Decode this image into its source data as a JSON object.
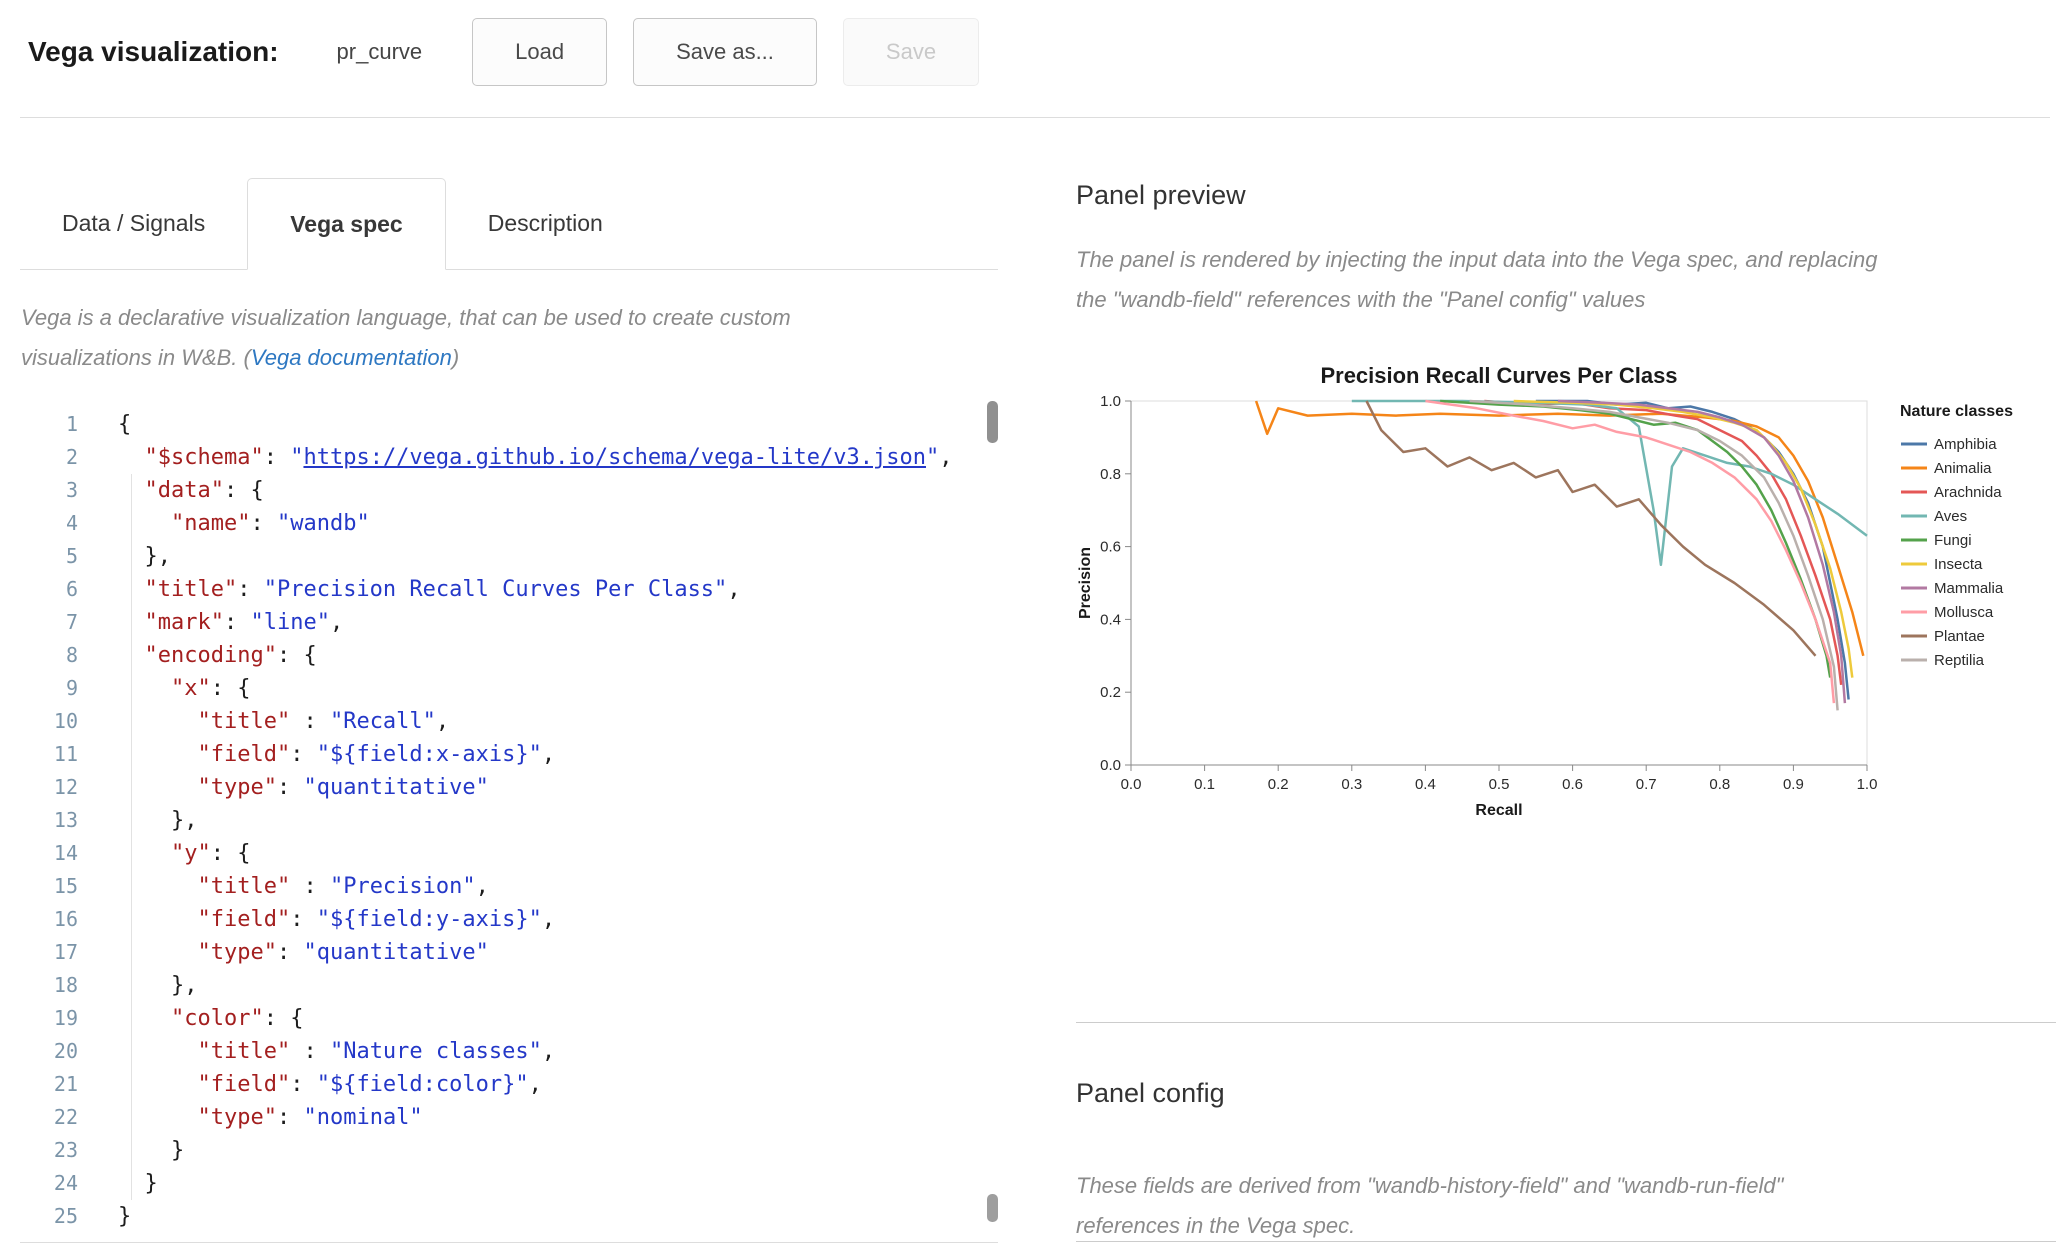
{
  "header": {
    "title": "Vega visualization:",
    "panel_name": "pr_curve",
    "buttons": {
      "load": "Load",
      "save_as": "Save as...",
      "save": "Save"
    }
  },
  "tabs": [
    {
      "label": "Data / Signals",
      "active": false
    },
    {
      "label": "Vega spec",
      "active": true
    },
    {
      "label": "Description",
      "active": false
    }
  ],
  "intro": {
    "line1": "Vega is a declarative visualization language, that can be used to create custom",
    "line2_prefix": "visualizations in W&B. (",
    "link_label": "Vega documentation",
    "suffix": ")"
  },
  "colors": {
    "link": "#2e78c2",
    "code_key": "#a31f1f",
    "code_string": "#2438c8",
    "code_plain": "#1c1c1c",
    "line_number": "#7b94a8"
  },
  "editor": {
    "lines": [
      [
        [
          "p",
          "{"
        ]
      ],
      [
        [
          "p",
          "  "
        ],
        [
          "k",
          "\"$schema\""
        ],
        [
          "p",
          ": "
        ],
        [
          "s",
          "\""
        ],
        [
          "l",
          "https://vega.github.io/schema/vega-lite/v3.json"
        ],
        [
          "s",
          "\""
        ],
        [
          "p",
          ","
        ]
      ],
      [
        [
          "p",
          "  "
        ],
        [
          "k",
          "\"data\""
        ],
        [
          "p",
          ": {"
        ]
      ],
      [
        [
          "p",
          "    "
        ],
        [
          "k",
          "\"name\""
        ],
        [
          "p",
          ": "
        ],
        [
          "s",
          "\"wandb\""
        ]
      ],
      [
        [
          "p",
          "  },"
        ]
      ],
      [
        [
          "p",
          "  "
        ],
        [
          "k",
          "\"title\""
        ],
        [
          "p",
          ": "
        ],
        [
          "s",
          "\"Precision Recall Curves Per Class\""
        ],
        [
          "p",
          ","
        ]
      ],
      [
        [
          "p",
          "  "
        ],
        [
          "k",
          "\"mark\""
        ],
        [
          "p",
          ": "
        ],
        [
          "s",
          "\"line\""
        ],
        [
          "p",
          ","
        ]
      ],
      [
        [
          "p",
          "  "
        ],
        [
          "k",
          "\"encoding\""
        ],
        [
          "p",
          ": {"
        ]
      ],
      [
        [
          "p",
          "    "
        ],
        [
          "k",
          "\"x\""
        ],
        [
          "p",
          ": {"
        ]
      ],
      [
        [
          "p",
          "      "
        ],
        [
          "k",
          "\"title\""
        ],
        [
          "p",
          " : "
        ],
        [
          "s",
          "\"Recall\""
        ],
        [
          "p",
          ","
        ]
      ],
      [
        [
          "p",
          "      "
        ],
        [
          "k",
          "\"field\""
        ],
        [
          "p",
          ": "
        ],
        [
          "s",
          "\"${field:x-axis}\""
        ],
        [
          "p",
          ","
        ]
      ],
      [
        [
          "p",
          "      "
        ],
        [
          "k",
          "\"type\""
        ],
        [
          "p",
          ": "
        ],
        [
          "s",
          "\"quantitative\""
        ]
      ],
      [
        [
          "p",
          "    },"
        ]
      ],
      [
        [
          "p",
          "    "
        ],
        [
          "k",
          "\"y\""
        ],
        [
          "p",
          ": {"
        ]
      ],
      [
        [
          "p",
          "      "
        ],
        [
          "k",
          "\"title\""
        ],
        [
          "p",
          " : "
        ],
        [
          "s",
          "\"Precision\""
        ],
        [
          "p",
          ","
        ]
      ],
      [
        [
          "p",
          "      "
        ],
        [
          "k",
          "\"field\""
        ],
        [
          "p",
          ": "
        ],
        [
          "s",
          "\"${field:y-axis}\""
        ],
        [
          "p",
          ","
        ]
      ],
      [
        [
          "p",
          "      "
        ],
        [
          "k",
          "\"type\""
        ],
        [
          "p",
          ": "
        ],
        [
          "s",
          "\"quantitative\""
        ]
      ],
      [
        [
          "p",
          "    },"
        ]
      ],
      [
        [
          "p",
          "    "
        ],
        [
          "k",
          "\"color\""
        ],
        [
          "p",
          ": {"
        ]
      ],
      [
        [
          "p",
          "      "
        ],
        [
          "k",
          "\"title\""
        ],
        [
          "p",
          " : "
        ],
        [
          "s",
          "\"Nature classes\""
        ],
        [
          "p",
          ","
        ]
      ],
      [
        [
          "p",
          "      "
        ],
        [
          "k",
          "\"field\""
        ],
        [
          "p",
          ": "
        ],
        [
          "s",
          "\"${field:color}\""
        ],
        [
          "p",
          ","
        ]
      ],
      [
        [
          "p",
          "      "
        ],
        [
          "k",
          "\"type\""
        ],
        [
          "p",
          ": "
        ],
        [
          "s",
          "\"nominal\""
        ]
      ],
      [
        [
          "p",
          "    }"
        ]
      ],
      [
        [
          "p",
          "  }"
        ]
      ],
      [
        [
          "p",
          "}"
        ]
      ]
    ]
  },
  "preview": {
    "heading": "Panel preview",
    "lines": [
      "The panel is rendered by injecting the input data into the Vega spec, and replacing",
      "the \"wandb-field\" references with the \"Panel config\" values"
    ]
  },
  "config": {
    "heading": "Panel config",
    "lines": [
      "These fields are derived from \"wandb-history-field\" and \"wandb-run-field\"",
      "references in the Vega spec."
    ]
  },
  "chart_data": {
    "type": "line",
    "title": "Precision Recall Curves Per Class",
    "xlabel": "Recall",
    "ylabel": "Precision",
    "xlim": [
      0,
      1
    ],
    "ylim": [
      0,
      1
    ],
    "x_ticks": [
      0,
      0.1,
      0.2,
      0.3,
      0.4,
      0.5,
      0.6,
      0.7,
      0.8,
      0.9,
      1.0
    ],
    "y_ticks": [
      0,
      0.2,
      0.4,
      0.6,
      0.8,
      1.0
    ],
    "grid": false,
    "legend_title": "Nature classes",
    "legend_position": "right",
    "series": [
      {
        "name": "Amphibia",
        "color": "#4c78a8",
        "points": [
          [
            0.55,
            1.0
          ],
          [
            0.62,
            1.0
          ],
          [
            0.66,
            0.99
          ],
          [
            0.7,
            0.995
          ],
          [
            0.73,
            0.98
          ],
          [
            0.76,
            0.985
          ],
          [
            0.79,
            0.97
          ],
          [
            0.82,
            0.95
          ],
          [
            0.84,
            0.93
          ],
          [
            0.86,
            0.9
          ],
          [
            0.88,
            0.86
          ],
          [
            0.9,
            0.8
          ],
          [
            0.92,
            0.72
          ],
          [
            0.94,
            0.6
          ],
          [
            0.95,
            0.5
          ],
          [
            0.96,
            0.4
          ],
          [
            0.97,
            0.28
          ],
          [
            0.975,
            0.18
          ]
        ]
      },
      {
        "name": "Animalia",
        "color": "#f58518",
        "points": [
          [
            0.17,
            1.0
          ],
          [
            0.185,
            0.91
          ],
          [
            0.2,
            0.98
          ],
          [
            0.24,
            0.96
          ],
          [
            0.3,
            0.965
          ],
          [
            0.36,
            0.96
          ],
          [
            0.42,
            0.965
          ],
          [
            0.5,
            0.96
          ],
          [
            0.58,
            0.965
          ],
          [
            0.65,
            0.96
          ],
          [
            0.72,
            0.965
          ],
          [
            0.78,
            0.955
          ],
          [
            0.82,
            0.945
          ],
          [
            0.85,
            0.93
          ],
          [
            0.88,
            0.9
          ],
          [
            0.9,
            0.85
          ],
          [
            0.92,
            0.78
          ],
          [
            0.94,
            0.68
          ],
          [
            0.96,
            0.55
          ],
          [
            0.98,
            0.42
          ],
          [
            0.995,
            0.3
          ]
        ]
      },
      {
        "name": "Arachnida",
        "color": "#e45756",
        "points": [
          [
            0.48,
            1.0
          ],
          [
            0.55,
            0.99
          ],
          [
            0.6,
            0.995
          ],
          [
            0.65,
            0.98
          ],
          [
            0.7,
            0.975
          ],
          [
            0.74,
            0.96
          ],
          [
            0.77,
            0.95
          ],
          [
            0.8,
            0.92
          ],
          [
            0.83,
            0.89
          ],
          [
            0.85,
            0.85
          ],
          [
            0.87,
            0.8
          ],
          [
            0.89,
            0.73
          ],
          [
            0.91,
            0.63
          ],
          [
            0.93,
            0.52
          ],
          [
            0.95,
            0.4
          ],
          [
            0.96,
            0.3
          ],
          [
            0.965,
            0.22
          ]
        ]
      },
      {
        "name": "Aves",
        "color": "#72b7b2",
        "points": [
          [
            0.3,
            1.0
          ],
          [
            0.45,
            1.0
          ],
          [
            0.55,
            0.995
          ],
          [
            0.62,
            0.99
          ],
          [
            0.66,
            0.98
          ],
          [
            0.69,
            0.93
          ],
          [
            0.71,
            0.7
          ],
          [
            0.72,
            0.55
          ],
          [
            0.735,
            0.82
          ],
          [
            0.75,
            0.87
          ],
          [
            0.78,
            0.85
          ],
          [
            0.81,
            0.83
          ],
          [
            0.84,
            0.82
          ],
          [
            0.87,
            0.8
          ],
          [
            0.9,
            0.77
          ],
          [
            0.93,
            0.73
          ],
          [
            0.96,
            0.69
          ],
          [
            1.0,
            0.63
          ]
        ]
      },
      {
        "name": "Fungi",
        "color": "#54a24b",
        "points": [
          [
            0.42,
            1.0
          ],
          [
            0.5,
            0.99
          ],
          [
            0.56,
            0.985
          ],
          [
            0.61,
            0.975
          ],
          [
            0.65,
            0.965
          ],
          [
            0.68,
            0.95
          ],
          [
            0.71,
            0.935
          ],
          [
            0.74,
            0.94
          ],
          [
            0.77,
            0.92
          ],
          [
            0.79,
            0.89
          ],
          [
            0.81,
            0.86
          ],
          [
            0.83,
            0.82
          ],
          [
            0.85,
            0.77
          ],
          [
            0.87,
            0.7
          ],
          [
            0.89,
            0.61
          ],
          [
            0.91,
            0.51
          ],
          [
            0.93,
            0.4
          ],
          [
            0.945,
            0.3
          ],
          [
            0.95,
            0.24
          ]
        ]
      },
      {
        "name": "Insecta",
        "color": "#eeca3b",
        "points": [
          [
            0.52,
            1.0
          ],
          [
            0.6,
            0.995
          ],
          [
            0.66,
            0.99
          ],
          [
            0.71,
            0.98
          ],
          [
            0.75,
            0.97
          ],
          [
            0.79,
            0.955
          ],
          [
            0.82,
            0.94
          ],
          [
            0.85,
            0.92
          ],
          [
            0.87,
            0.88
          ],
          [
            0.89,
            0.83
          ],
          [
            0.91,
            0.76
          ],
          [
            0.93,
            0.66
          ],
          [
            0.95,
            0.54
          ],
          [
            0.965,
            0.42
          ],
          [
            0.975,
            0.32
          ],
          [
            0.98,
            0.24
          ]
        ]
      },
      {
        "name": "Mammalia",
        "color": "#b279a2",
        "points": [
          [
            0.58,
            1.0
          ],
          [
            0.64,
            0.995
          ],
          [
            0.69,
            0.99
          ],
          [
            0.73,
            0.98
          ],
          [
            0.77,
            0.97
          ],
          [
            0.8,
            0.955
          ],
          [
            0.83,
            0.935
          ],
          [
            0.86,
            0.9
          ],
          [
            0.88,
            0.85
          ],
          [
            0.9,
            0.78
          ],
          [
            0.92,
            0.68
          ],
          [
            0.94,
            0.55
          ],
          [
            0.955,
            0.42
          ],
          [
            0.965,
            0.3
          ],
          [
            0.97,
            0.17
          ]
        ]
      },
      {
        "name": "Mollusca",
        "color": "#ff9da6",
        "points": [
          [
            0.4,
            1.0
          ],
          [
            0.47,
            0.98
          ],
          [
            0.52,
            0.96
          ],
          [
            0.56,
            0.945
          ],
          [
            0.6,
            0.925
          ],
          [
            0.63,
            0.935
          ],
          [
            0.66,
            0.915
          ],
          [
            0.7,
            0.9
          ],
          [
            0.73,
            0.88
          ],
          [
            0.76,
            0.86
          ],
          [
            0.79,
            0.83
          ],
          [
            0.82,
            0.79
          ],
          [
            0.85,
            0.73
          ],
          [
            0.87,
            0.67
          ],
          [
            0.89,
            0.59
          ],
          [
            0.91,
            0.5
          ],
          [
            0.93,
            0.4
          ],
          [
            0.95,
            0.28
          ],
          [
            0.955,
            0.17
          ]
        ]
      },
      {
        "name": "Plantae",
        "color": "#9d755d",
        "points": [
          [
            0.32,
            1.0
          ],
          [
            0.34,
            0.92
          ],
          [
            0.37,
            0.86
          ],
          [
            0.4,
            0.87
          ],
          [
            0.43,
            0.82
          ],
          [
            0.46,
            0.845
          ],
          [
            0.49,
            0.81
          ],
          [
            0.52,
            0.83
          ],
          [
            0.55,
            0.79
          ],
          [
            0.58,
            0.81
          ],
          [
            0.6,
            0.75
          ],
          [
            0.63,
            0.77
          ],
          [
            0.66,
            0.71
          ],
          [
            0.69,
            0.73
          ],
          [
            0.72,
            0.66
          ],
          [
            0.75,
            0.6
          ],
          [
            0.78,
            0.55
          ],
          [
            0.82,
            0.5
          ],
          [
            0.86,
            0.44
          ],
          [
            0.9,
            0.37
          ],
          [
            0.93,
            0.3
          ]
        ]
      },
      {
        "name": "Reptilia",
        "color": "#bab0ac",
        "points": [
          [
            0.46,
            1.0
          ],
          [
            0.54,
            0.99
          ],
          [
            0.6,
            0.98
          ],
          [
            0.65,
            0.97
          ],
          [
            0.69,
            0.955
          ],
          [
            0.73,
            0.94
          ],
          [
            0.77,
            0.92
          ],
          [
            0.8,
            0.89
          ],
          [
            0.83,
            0.85
          ],
          [
            0.86,
            0.79
          ],
          [
            0.88,
            0.72
          ],
          [
            0.9,
            0.63
          ],
          [
            0.92,
            0.52
          ],
          [
            0.94,
            0.4
          ],
          [
            0.955,
            0.27
          ],
          [
            0.96,
            0.15
          ]
        ]
      }
    ]
  }
}
